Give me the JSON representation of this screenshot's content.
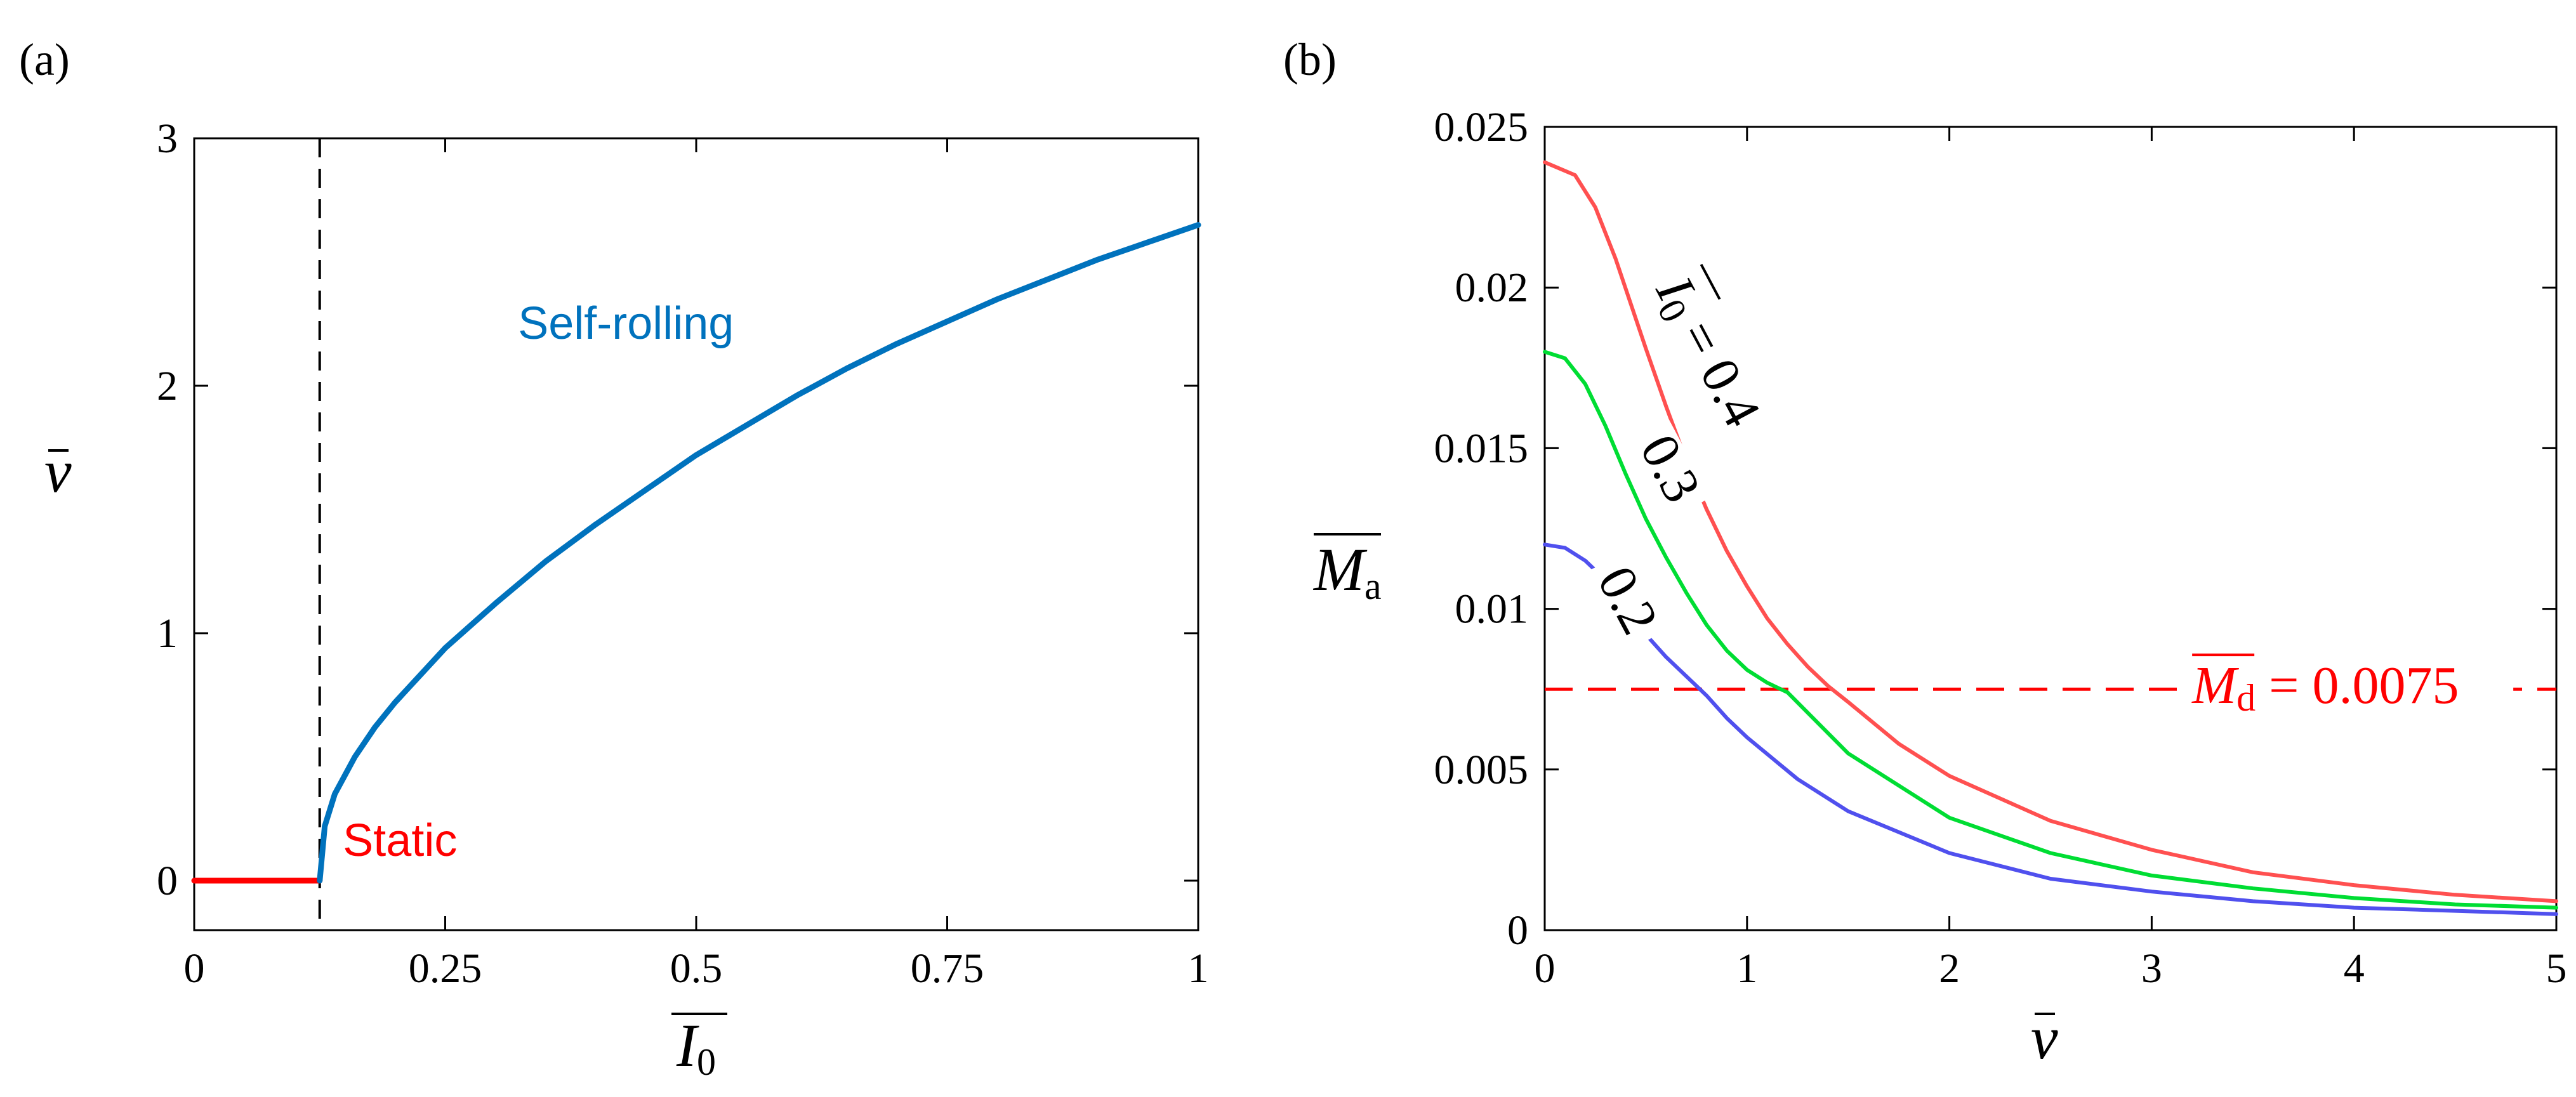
{
  "chart_data": [
    {
      "panel_label": "(a)",
      "type": "line",
      "xlabel": {
        "symbol": "I",
        "subscript": "0"
      },
      "ylabel": {
        "symbol": "v"
      },
      "xlim": [
        0,
        1
      ],
      "ylim": [
        -0.2,
        3
      ],
      "xticks": [
        {
          "value": 0,
          "label": "0"
        },
        {
          "value": 0.25,
          "label": "0.25"
        },
        {
          "value": 0.5,
          "label": "0.5"
        },
        {
          "value": 0.75,
          "label": "0.75"
        },
        {
          "value": 1,
          "label": "1"
        }
      ],
      "yticks": [
        {
          "value": 0,
          "label": "0"
        },
        {
          "value": 1,
          "label": "1"
        },
        {
          "value": 2,
          "label": "2"
        },
        {
          "value": 3,
          "label": "3"
        }
      ],
      "series": [
        {
          "color": "#ff0000",
          "x": [
            0,
            0.125
          ],
          "y": [
            0,
            0
          ]
        },
        {
          "color": "#0072bd",
          "x": [
            0.125,
            0.13,
            0.14,
            0.16,
            0.18,
            0.2,
            0.25,
            0.3,
            0.35,
            0.4,
            0.45,
            0.5,
            0.55,
            0.6,
            0.65,
            0.7,
            0.75,
            0.8,
            0.85,
            0.9,
            0.95,
            1.0
          ],
          "y": [
            0.0,
            0.22,
            0.35,
            0.5,
            0.62,
            0.72,
            0.94,
            1.12,
            1.29,
            1.44,
            1.58,
            1.72,
            1.84,
            1.96,
            2.07,
            2.17,
            2.26,
            2.35,
            2.43,
            2.51,
            2.58,
            2.65
          ]
        }
      ],
      "vline": {
        "x": 0.125,
        "style": "dashed",
        "color": "#000000"
      },
      "annotations": [
        {
          "text": "Self-rolling",
          "x": 0.43,
          "y": 2.19,
          "color": "#0072bd"
        },
        {
          "text": "Static",
          "x": 0.205,
          "y": 0.1,
          "color": "#ff0000"
        }
      ]
    },
    {
      "panel_label": "(b)",
      "type": "line",
      "xlabel": {
        "symbol": "v"
      },
      "ylabel": {
        "symbol": "M",
        "subscript": "a"
      },
      "xlim": [
        0,
        5
      ],
      "ylim": [
        0,
        0.025
      ],
      "xticks": [
        {
          "value": 0,
          "label": "0"
        },
        {
          "value": 1,
          "label": "1"
        },
        {
          "value": 2,
          "label": "2"
        },
        {
          "value": 3,
          "label": "3"
        },
        {
          "value": 4,
          "label": "4"
        },
        {
          "value": 5,
          "label": "5"
        }
      ],
      "yticks": [
        {
          "value": 0,
          "label": "0"
        },
        {
          "value": 0.005,
          "label": "0.005"
        },
        {
          "value": 0.01,
          "label": "0.01"
        },
        {
          "value": 0.015,
          "label": "0.015"
        },
        {
          "value": 0.02,
          "label": "0.02"
        },
        {
          "value": 0.025,
          "label": "0.025"
        }
      ],
      "series": [
        {
          "color": "#ff5050",
          "x": [
            0,
            0.15,
            0.25,
            0.35,
            0.5,
            0.6,
            0.7,
            0.8,
            0.9,
            1.0,
            1.1,
            1.2,
            1.3,
            1.4,
            1.5,
            1.75,
            2.0,
            2.5,
            3.0,
            3.5,
            4.0,
            4.5,
            5.0
          ],
          "y": [
            0.0239,
            0.0235,
            0.0225,
            0.0209,
            0.0181,
            0.0163,
            0.0146,
            0.0131,
            0.0118,
            0.0107,
            0.0097,
            0.0089,
            0.0082,
            0.0076,
            0.0071,
            0.0058,
            0.0048,
            0.0034,
            0.0025,
            0.0018,
            0.0014,
            0.0011,
            0.0009
          ]
        },
        {
          "color": "#00dd33",
          "x": [
            0,
            0.1,
            0.2,
            0.3,
            0.4,
            0.5,
            0.6,
            0.7,
            0.8,
            0.9,
            1.0,
            1.1,
            1.2,
            1.5,
            2.0,
            2.5,
            3.0,
            3.5,
            4.0,
            4.5,
            5.0
          ],
          "y": [
            0.018,
            0.0178,
            0.017,
            0.0157,
            0.0142,
            0.0128,
            0.0116,
            0.0105,
            0.0095,
            0.0087,
            0.0081,
            0.0077,
            0.0074,
            0.0055,
            0.0035,
            0.0024,
            0.0017,
            0.0013,
            0.001,
            0.0008,
            0.0007
          ]
        },
        {
          "color": "#5050ee",
          "x": [
            0,
            0.1,
            0.2,
            0.3,
            0.4,
            0.5,
            0.6,
            0.7,
            0.8,
            0.9,
            1.0,
            1.25,
            1.5,
            2.0,
            2.5,
            3.0,
            3.5,
            4.0,
            4.5,
            5.0
          ],
          "y": [
            0.012,
            0.0119,
            0.0115,
            0.0109,
            0.0101,
            0.0092,
            0.0085,
            0.0079,
            0.0073,
            0.0066,
            0.006,
            0.0047,
            0.0037,
            0.0024,
            0.0016,
            0.0012,
            0.0009,
            0.0007,
            0.0006,
            0.0005
          ]
        }
      ],
      "hline": {
        "y": 0.0075,
        "style": "dashed",
        "color": "#ff0000"
      },
      "annotations": [
        {
          "text": "0.2",
          "x": 0.39,
          "y": 0.0098,
          "color": "#000000",
          "rotate": 62
        },
        {
          "text": "0.3",
          "x": 0.6,
          "y": 0.0139,
          "color": "#000000",
          "rotate": 62
        },
        {
          "text": "I",
          "sub": "0",
          "suffix": " = 0.4",
          "x": 0.72,
          "y": 0.0179,
          "color": "#000000",
          "rotate": 62
        },
        {
          "text": "M",
          "sub": "d",
          "suffix": " = 0.0075",
          "x": 3.2,
          "y": 0.0077,
          "color": "#ff0000"
        }
      ]
    }
  ]
}
